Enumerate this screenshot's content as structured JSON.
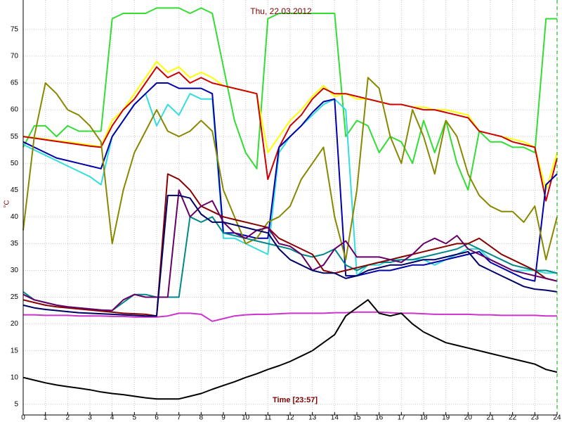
{
  "chart_data": {
    "type": "line",
    "title": "Thu, 22.03.2012",
    "y_label": "°C",
    "x_label": "Time [23:57]",
    "x": [
      0,
      0.5,
      1,
      1.5,
      2,
      2.5,
      3,
      3.5,
      4,
      4.5,
      5,
      5.5,
      6,
      6.5,
      7,
      7.5,
      8,
      8.5,
      9,
      9.5,
      10,
      10.5,
      11,
      11.5,
      12,
      12.5,
      13,
      13.5,
      14,
      14.5,
      15,
      15.5,
      16,
      16.5,
      17,
      17.5,
      18,
      18.5,
      19,
      19.5,
      20,
      20.5,
      21,
      21.5,
      22,
      22.5,
      23,
      23.5,
      24
    ],
    "xlim": [
      0,
      24
    ],
    "xticks": [
      0,
      1,
      2,
      3,
      4,
      5,
      6,
      7,
      8,
      9,
      10,
      11,
      12,
      13,
      14,
      15,
      16,
      17,
      18,
      19,
      20,
      21,
      22,
      23,
      24
    ],
    "ylim": [
      3,
      80.5
    ],
    "yticks": [
      5,
      10,
      15,
      20,
      25,
      30,
      35,
      40,
      45,
      50,
      55,
      60,
      65,
      70,
      75
    ],
    "grid": true,
    "series": [
      {
        "color": "#33dd33",
        "values": [
          53,
          57,
          57,
          55,
          57,
          56,
          56,
          56,
          77,
          78,
          78,
          78,
          79,
          79,
          79,
          78,
          79,
          78,
          68,
          58,
          52,
          49,
          77,
          78,
          78,
          78,
          78,
          78,
          78,
          55,
          58,
          57,
          52,
          55,
          54,
          50,
          58,
          52,
          58,
          50,
          45,
          56,
          54,
          54,
          53,
          53,
          52,
          77,
          77
        ]
      },
      {
        "color": "#ffff00",
        "values": [
          55,
          54.8,
          54.5,
          54.2,
          54,
          53.7,
          53.4,
          53.1,
          58,
          60,
          63,
          66,
          69,
          67,
          68,
          66,
          67,
          66,
          64.5,
          64,
          63.5,
          63,
          52,
          55,
          58,
          60,
          62.5,
          64.5,
          62.5,
          63,
          62,
          62,
          61.5,
          61,
          61,
          60.5,
          60.5,
          60,
          60,
          59.5,
          59,
          56,
          55.5,
          55,
          54.5,
          54,
          53,
          45,
          52
        ]
      },
      {
        "color": "#cc0000",
        "values": [
          55,
          54.7,
          54.4,
          54.1,
          53.8,
          53.5,
          53.2,
          53,
          57,
          60,
          62,
          65,
          68,
          66,
          67,
          65,
          66,
          65,
          64.5,
          64,
          63.5,
          63,
          47,
          53,
          57,
          59,
          62,
          64,
          63,
          63,
          62.5,
          62,
          61.5,
          61,
          61,
          60.5,
          60,
          60,
          59.5,
          59,
          58.5,
          56,
          55.5,
          55,
          54,
          53.5,
          53,
          43,
          51
        ]
      },
      {
        "color": "#33dddd",
        "values": [
          53.5,
          52.5,
          51.5,
          50.5,
          49.5,
          48.5,
          47.5,
          46,
          55,
          58,
          61,
          63,
          57,
          61,
          59,
          63,
          62,
          62,
          36,
          36,
          35,
          34,
          33,
          52,
          55,
          57,
          59,
          61,
          62,
          60,
          29,
          31,
          31,
          32,
          32,
          32,
          32,
          31,
          32,
          33,
          34,
          34,
          32,
          31,
          30,
          30,
          30,
          29.5,
          29.5
        ]
      },
      {
        "color": "#0000aa",
        "values": [
          54,
          53,
          52,
          51,
          50.5,
          50,
          49.5,
          49,
          55,
          58,
          61,
          63,
          65,
          65,
          64,
          64,
          64,
          63,
          37,
          37,
          36.5,
          36,
          36,
          53,
          55,
          57,
          59.5,
          61.5,
          62,
          29,
          29,
          29.5,
          30,
          30,
          30.5,
          31,
          31,
          31.5,
          32,
          32.5,
          33,
          33.5,
          31.5,
          30.5,
          29.5,
          28.5,
          28,
          46,
          48
        ]
      },
      {
        "color": "#888800",
        "values": [
          37.5,
          55,
          65,
          63,
          60,
          59,
          57,
          54,
          35,
          45,
          52,
          56,
          60,
          56,
          55,
          56,
          58,
          56,
          45,
          40,
          35,
          36,
          39,
          40,
          42,
          47,
          50,
          53,
          40,
          32,
          45,
          66,
          64,
          55,
          50,
          60,
          55,
          48,
          58,
          55,
          48,
          44,
          42,
          41,
          41,
          39,
          42,
          32,
          40
        ]
      },
      {
        "color": "#cc33cc",
        "values": [
          21.7,
          21.7,
          21.6,
          21.6,
          21.6,
          21.5,
          21.5,
          21.5,
          21.4,
          21.4,
          21.3,
          21.3,
          21.3,
          21.5,
          22,
          22,
          21.8,
          20.5,
          21,
          21.5,
          21.7,
          21.8,
          21.8,
          21.9,
          22,
          22,
          22,
          22,
          22.1,
          22.1,
          22.2,
          22.2,
          22.2,
          22.1,
          22,
          22,
          21.9,
          21.8,
          21.8,
          21.8,
          21.8,
          21.7,
          21.7,
          21.6,
          21.6,
          21.6,
          21.6,
          21.5,
          21.5
        ]
      },
      {
        "color": "#000000",
        "values": [
          10,
          9.5,
          9,
          8.6,
          8.3,
          8,
          7.7,
          7.3,
          7,
          6.8,
          6.5,
          6.2,
          6,
          6,
          6,
          6.5,
          7,
          7.8,
          8.5,
          9.2,
          10,
          10.7,
          11.5,
          12.2,
          13,
          14,
          15,
          16.5,
          18,
          21.5,
          23,
          24.5,
          22,
          21.5,
          22,
          20,
          18.5,
          17.5,
          16.5,
          16,
          15.5,
          15,
          14.5,
          14,
          13.5,
          13,
          12.5,
          11.5,
          11
        ]
      },
      {
        "color": "#008888",
        "values": [
          26,
          24.5,
          24,
          23.5,
          23.2,
          23,
          22.8,
          22.6,
          22.5,
          24,
          25.5,
          25.5,
          25,
          25,
          25,
          40,
          39,
          40,
          37,
          36.5,
          36,
          35.5,
          35,
          34.5,
          34,
          33,
          32.5,
          33,
          34,
          31,
          30,
          31,
          31.5,
          31.5,
          32,
          32,
          32.5,
          33,
          33.5,
          34,
          35,
          34,
          33,
          32,
          31,
          30.5,
          30,
          30,
          29.5
        ]
      },
      {
        "color": "#880000",
        "values": [
          24.5,
          24,
          23.5,
          23.2,
          23,
          22.8,
          22.6,
          22.4,
          22.2,
          22,
          21.9,
          21.8,
          21.5,
          48,
          47,
          45,
          42,
          41,
          40,
          39.5,
          39,
          38.5,
          38,
          36,
          35,
          34,
          33,
          30,
          29.5,
          30,
          30.5,
          31,
          31.5,
          32,
          32.5,
          33,
          33.5,
          34,
          34.5,
          35,
          35,
          36,
          34.5,
          33,
          32,
          31,
          30,
          28.5,
          28
        ]
      },
      {
        "color": "#660066",
        "values": [
          25.5,
          24.5,
          24,
          23.5,
          23.2,
          23,
          22.8,
          22.6,
          22.5,
          24.5,
          25.5,
          25,
          25,
          25,
          45,
          40,
          42,
          43,
          39,
          37,
          36,
          37.5,
          38,
          35,
          34.5,
          33,
          30,
          31,
          34,
          35.5,
          32.5,
          32.5,
          32.5,
          32,
          31.5,
          33,
          35,
          36,
          35,
          36.5,
          34,
          33,
          32,
          31,
          30,
          29.5,
          29,
          28.5,
          28
        ]
      },
      {
        "color": "#000066",
        "values": [
          23.5,
          23,
          22.7,
          22.5,
          22.3,
          22.1,
          22,
          21.9,
          21.8,
          21.7,
          21.6,
          21.5,
          21.5,
          44,
          44,
          43.5,
          40.5,
          39,
          39,
          38.5,
          38,
          37.5,
          37,
          34,
          32,
          31,
          30,
          29.5,
          29.5,
          28.5,
          29,
          30,
          30.5,
          31,
          31,
          31.5,
          32,
          32,
          32.5,
          33,
          33.5,
          31,
          30,
          29,
          28,
          27,
          26.5,
          26.3,
          26
        ]
      }
    ]
  }
}
